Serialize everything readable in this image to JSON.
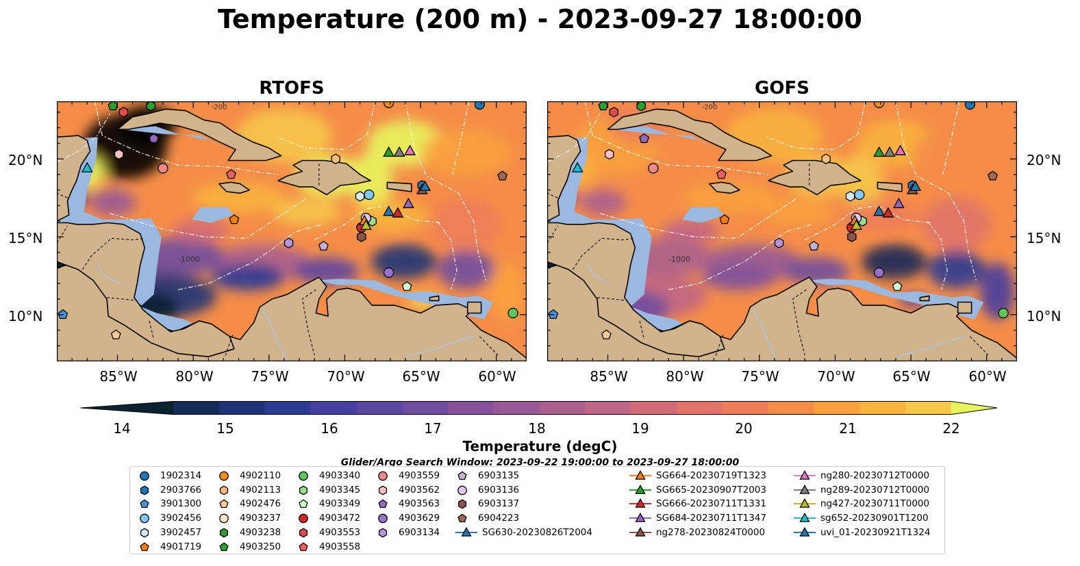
{
  "title": "Temperature (200 m) - 2023-09-27 18:00:00",
  "panels": [
    {
      "title": "RTOFS"
    },
    {
      "title": "GOFS"
    }
  ],
  "lat_ticks": [
    "20°N",
    "15°N",
    "10°N"
  ],
  "lon_ticks": [
    "85°W",
    "80°W",
    "75°W",
    "70°W",
    "65°W",
    "60°W"
  ],
  "isobath_labels": {
    "shelf": "-200",
    "deep": "-1000"
  },
  "colorbar": {
    "label": "Temperature (degC)",
    "ticks": [
      "14",
      "15",
      "16",
      "17",
      "18",
      "19",
      "20",
      "21",
      "22"
    ],
    "colors": [
      "#0b2233",
      "#152a56",
      "#1f3375",
      "#2d3a92",
      "#453f9f",
      "#5c45a1",
      "#6f4c9e",
      "#83529a",
      "#975995",
      "#ab5f8e",
      "#c06585",
      "#d36b77",
      "#e1736a",
      "#ed7e59",
      "#f58d48",
      "#f9a13f",
      "#f9b33e",
      "#f7c74a",
      "#e8f45e"
    ]
  },
  "search_window": "Glider/Argo Search Window: 2023-09-22 19:00:00 to 2023-09-27 18:00:00",
  "legend": {
    "columns": [
      [
        {
          "label": "1902314",
          "marker": "circle",
          "color": "#1f77b4"
        },
        {
          "label": "2903766",
          "marker": "hexagon",
          "color": "#1f77b4"
        },
        {
          "label": "3901300",
          "marker": "pentagon",
          "color": "#4a90d9"
        },
        {
          "label": "3902456",
          "marker": "circle",
          "color": "#7fc8f8"
        },
        {
          "label": "3902457",
          "marker": "hexagon",
          "color": "#d6ecfb"
        },
        {
          "label": "4901719",
          "marker": "pentagon",
          "color": "#ff7f0e"
        }
      ],
      [
        {
          "label": "4902110",
          "marker": "circle",
          "color": "#ff8c1a"
        },
        {
          "label": "4902113",
          "marker": "hexagon",
          "color": "#ffbb78"
        },
        {
          "label": "4902476",
          "marker": "pentagon",
          "color": "#ffc999"
        },
        {
          "label": "4903237",
          "marker": "circle",
          "color": "#ffe4c2"
        },
        {
          "label": "4903238",
          "marker": "hexagon",
          "color": "#2ca02c"
        },
        {
          "label": "4903250",
          "marker": "pentagon",
          "color": "#2ca02c"
        }
      ],
      [
        {
          "label": "4903340",
          "marker": "circle",
          "color": "#5cc85c"
        },
        {
          "label": "4903345",
          "marker": "hexagon",
          "color": "#98df8a"
        },
        {
          "label": "4903349",
          "marker": "pentagon",
          "color": "#ccffcc"
        },
        {
          "label": "4903472",
          "marker": "circle",
          "color": "#d62728"
        },
        {
          "label": "4903553",
          "marker": "hexagon",
          "color": "#e34a4a"
        },
        {
          "label": "4903558",
          "marker": "pentagon",
          "color": "#f06060"
        }
      ],
      [
        {
          "label": "4903559",
          "marker": "circle",
          "color": "#f08a8a"
        },
        {
          "label": "4903562",
          "marker": "hexagon",
          "color": "#ffc0c0"
        },
        {
          "label": "4903563",
          "marker": "pentagon",
          "color": "#9467bd"
        },
        {
          "label": "4903629",
          "marker": "circle",
          "color": "#9a6fcf"
        },
        {
          "label": "6903134",
          "marker": "hexagon",
          "color": "#b395e0"
        }
      ],
      [
        {
          "label": "6903135",
          "marker": "pentagon",
          "color": "#c5b0d5"
        },
        {
          "label": "6903136",
          "marker": "circle",
          "color": "#e3c7f5"
        },
        {
          "label": "6903137",
          "marker": "hexagon",
          "color": "#8c564b"
        },
        {
          "label": "6904223",
          "marker": "pentagon",
          "color": "#a0664e"
        },
        {
          "label": "SG630-20230826T2004",
          "marker": "triangle-line",
          "color": "#1f77b4"
        }
      ],
      [
        {
          "label": "SG664-20230719T1323",
          "marker": "triangle-line",
          "color": "#ff7f0e"
        },
        {
          "label": "SG665-20230907T2003",
          "marker": "triangle-line",
          "color": "#2ca02c"
        },
        {
          "label": "SG666-20230711T1331",
          "marker": "triangle-line",
          "color": "#d62728"
        },
        {
          "label": "SG684-20230711T1347",
          "marker": "triangle-line",
          "color": "#9467bd"
        },
        {
          "label": "ng278-20230824T0000",
          "marker": "triangle-line",
          "color": "#8c564b"
        }
      ],
      [
        {
          "label": "ng280-20230712T0000",
          "marker": "triangle-line",
          "color": "#e377c2"
        },
        {
          "label": "ng289-20230712T0000",
          "marker": "triangle-line",
          "color": "#7f7f7f"
        },
        {
          "label": "ng427-20230711T0000",
          "marker": "triangle-line",
          "color": "#bcbd22"
        },
        {
          "label": "sg652-20230901T1200",
          "marker": "triangle-line",
          "color": "#17becf"
        },
        {
          "label": "uvi_01-20230921T1324",
          "marker": "triangle-line",
          "color": "#1f77b4"
        }
      ]
    ]
  },
  "observations": [
    {
      "id": "1902314",
      "lon": -61.1,
      "lat": 23.5,
      "marker": "circle",
      "color": "#1f77b4"
    },
    {
      "id": "2903766",
      "lon": -64.9,
      "lat": 18.3,
      "marker": "hexagon",
      "color": "#1f77b4"
    },
    {
      "id": "3901300",
      "lon": -88.6,
      "lat": 10.0,
      "marker": "pentagon",
      "color": "#4a90d9"
    },
    {
      "id": "3902456",
      "lon": -68.4,
      "lat": 17.7,
      "marker": "circle",
      "color": "#7fc8f8"
    },
    {
      "id": "3902457",
      "lon": -69.0,
      "lat": 17.6,
      "marker": "hexagon",
      "color": "#d6ecfb"
    },
    {
      "id": "4901719",
      "lon": -77.3,
      "lat": 16.1,
      "marker": "pentagon",
      "color": "#ff7f0e"
    },
    {
      "id": "4902110",
      "lon": -67.1,
      "lat": 23.6,
      "marker": "circle",
      "color": "#ff8c1a"
    },
    {
      "id": "4902113",
      "lon": -70.6,
      "lat": 20.0,
      "marker": "hexagon",
      "color": "#ffbb78"
    },
    {
      "id": "4902476",
      "lon": -85.1,
      "lat": 8.7,
      "marker": "pentagon",
      "color": "#ffc999"
    },
    {
      "id": "4903237",
      "lon": -68.5,
      "lat": 16.1,
      "marker": "circle",
      "color": "#ffe4c2"
    },
    {
      "id": "4903238",
      "lon": -82.8,
      "lat": 23.4,
      "marker": "hexagon",
      "color": "#2ca02c"
    },
    {
      "id": "4903250",
      "lon": -85.3,
      "lat": 23.4,
      "marker": "pentagon",
      "color": "#2ca02c"
    },
    {
      "id": "4903340",
      "lon": -58.9,
      "lat": 10.1,
      "marker": "circle",
      "color": "#5cc85c"
    },
    {
      "id": "4903345",
      "lon": -68.2,
      "lat": 16.0,
      "marker": "hexagon",
      "color": "#98df8a"
    },
    {
      "id": "4903349",
      "lon": -65.9,
      "lat": 11.8,
      "marker": "pentagon",
      "color": "#ccffcc"
    },
    {
      "id": "4903472",
      "lon": -68.9,
      "lat": 15.6,
      "marker": "circle",
      "color": "#d62728"
    },
    {
      "id": "4903553",
      "lon": -84.6,
      "lat": 23.0,
      "marker": "hexagon",
      "color": "#e34a4a"
    },
    {
      "id": "4903558",
      "lon": -77.5,
      "lat": 19.0,
      "marker": "pentagon",
      "color": "#f06060"
    },
    {
      "id": "4903559",
      "lon": -82.0,
      "lat": 19.4,
      "marker": "circle",
      "color": "#f08a8a"
    },
    {
      "id": "4903562",
      "lon": -84.9,
      "lat": 20.3,
      "marker": "hexagon",
      "color": "#ffc0c0"
    },
    {
      "id": "4903563",
      "lon": -82.6,
      "lat": 21.3,
      "marker": "pentagon",
      "color": "#9467bd"
    },
    {
      "id": "4903629",
      "lon": -67.1,
      "lat": 12.7,
      "marker": "circle",
      "color": "#9a6fcf"
    },
    {
      "id": "6903134",
      "lon": -73.7,
      "lat": 14.6,
      "marker": "hexagon",
      "color": "#b395e0"
    },
    {
      "id": "6903135",
      "lon": -71.4,
      "lat": 14.4,
      "marker": "pentagon",
      "color": "#c5b0d5"
    },
    {
      "id": "6903136",
      "lon": -68.6,
      "lat": 16.2,
      "marker": "circle",
      "color": "#e3c7f5"
    },
    {
      "id": "6903137",
      "lon": -68.9,
      "lat": 15.0,
      "marker": "hexagon",
      "color": "#8c564b"
    },
    {
      "id": "6904223",
      "lon": -59.6,
      "lat": 18.9,
      "marker": "pentagon",
      "color": "#a0664e"
    },
    {
      "id": "SG630-20230826T2004",
      "lon": -67.1,
      "lat": 16.6,
      "marker": "triangle",
      "color": "#1f77b4"
    },
    {
      "id": "SG664-20230719T1323",
      "lon": -68.7,
      "lat": 16.0,
      "marker": "triangle",
      "color": "#ff7f0e"
    },
    {
      "id": "SG665-20230907T2003",
      "lon": -67.1,
      "lat": 20.4,
      "marker": "triangle",
      "color": "#2ca02c"
    },
    {
      "id": "SG666-20230711T1331",
      "lon": -66.5,
      "lat": 16.5,
      "marker": "triangle",
      "color": "#d62728"
    },
    {
      "id": "SG684-20230711T1347",
      "lon": -65.8,
      "lat": 17.1,
      "marker": "triangle",
      "color": "#9467bd"
    },
    {
      "id": "ng278-20230824T0000",
      "lon": -64.9,
      "lat": 18.0,
      "marker": "triangle",
      "color": "#8c564b"
    },
    {
      "id": "ng280-20230712T0000",
      "lon": -65.7,
      "lat": 20.5,
      "marker": "triangle",
      "color": "#e377c2"
    },
    {
      "id": "ng289-20230712T0000",
      "lon": -66.4,
      "lat": 20.4,
      "marker": "triangle",
      "color": "#7f7f7f"
    },
    {
      "id": "ng427-20230711T0000",
      "lon": -68.6,
      "lat": 15.7,
      "marker": "triangle",
      "color": "#bcbd22"
    },
    {
      "id": "sg652-20230901T1200",
      "lon": -87.0,
      "lat": 19.4,
      "marker": "triangle",
      "color": "#17becf"
    },
    {
      "id": "uvi_01-20230921T1324",
      "lon": -64.7,
      "lat": 18.2,
      "marker": "triangle",
      "color": "#1f77b4"
    }
  ],
  "colors": {
    "land": "#d2b48c",
    "shelf": "#9ab8e0",
    "coast": "#000000",
    "eez": "#ffffff",
    "pacific": "#0b2233"
  }
}
